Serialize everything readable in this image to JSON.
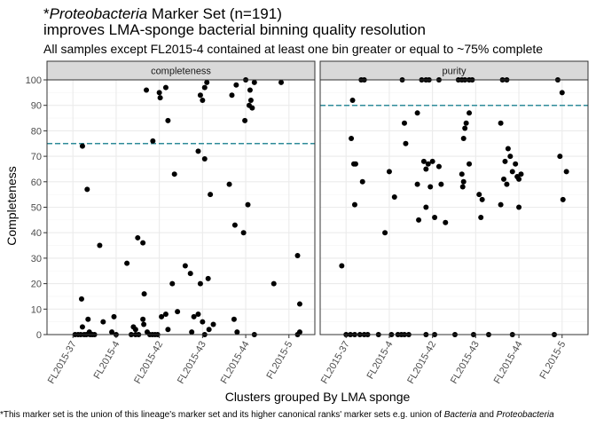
{
  "chart_data": {
    "type": "scatter",
    "title_prefix": "*",
    "title_italic": "Proteobacteria",
    "title_rest": " Marker Set (n=191)",
    "title_line2": "improves LMA-sponge bacterial binning quality resolution",
    "subtitle": "All samples except FL2015-4 contained at least one bin greater or equal to ~75% complete",
    "caption_parts": [
      {
        "text": "*This marker set is the union of this lineage's marker set and its higher canonical ranks' marker sets e.g. union of ",
        "italic": false
      },
      {
        "text": "Bacteria",
        "italic": true
      },
      {
        "text": " and ",
        "italic": false
      },
      {
        "text": "Proteobacteria",
        "italic": true
      }
    ],
    "xlabel": "Clusters grouped By LMA sponge",
    "ylabel": "Completeness",
    "categories": [
      "FL2015-37",
      "FL2015-4",
      "FL2015-42",
      "FL2015-43",
      "FL2015-44",
      "FL2015-5"
    ],
    "ylim": [
      0,
      100
    ],
    "yticks": [
      0,
      10,
      20,
      30,
      40,
      50,
      60,
      70,
      80,
      90,
      100
    ],
    "grid": true,
    "point_color": "#000000",
    "ref_line_color": "#2e8b99",
    "panel_bg": "#ffffff",
    "grid_color": "#ebebeb",
    "strip_bg": "#d9d9d9",
    "panels": [
      {
        "name": "completeness",
        "hline": 75,
        "points": [
          {
            "x": 1.22,
            "y": 74
          },
          {
            "x": 1.33,
            "y": 57
          },
          {
            "x": 1.62,
            "y": 35
          },
          {
            "x": 1.2,
            "y": 14
          },
          {
            "x": 1.35,
            "y": 6
          },
          {
            "x": 1.22,
            "y": 3
          },
          {
            "x": 1.38,
            "y": 1
          },
          {
            "x": 1.05,
            "y": 0
          },
          {
            "x": 1.12,
            "y": 0
          },
          {
            "x": 1.18,
            "y": 0
          },
          {
            "x": 1.26,
            "y": 0
          },
          {
            "x": 1.31,
            "y": 0
          },
          {
            "x": 1.4,
            "y": 0
          },
          {
            "x": 1.45,
            "y": 0
          },
          {
            "x": 1.5,
            "y": 0
          },
          {
            "x": 2.5,
            "y": 38
          },
          {
            "x": 2.25,
            "y": 28
          },
          {
            "x": 1.95,
            "y": 7
          },
          {
            "x": 1.7,
            "y": 5
          },
          {
            "x": 2.4,
            "y": 3
          },
          {
            "x": 2.45,
            "y": 2
          },
          {
            "x": 1.9,
            "y": 1
          },
          {
            "x": 2.0,
            "y": 0
          },
          {
            "x": 2.35,
            "y": 0
          },
          {
            "x": 2.45,
            "y": 0
          },
          {
            "x": 2.52,
            "y": 0
          },
          {
            "x": 2.7,
            "y": 96
          },
          {
            "x": 3.15,
            "y": 97
          },
          {
            "x": 3.0,
            "y": 95
          },
          {
            "x": 3.02,
            "y": 93
          },
          {
            "x": 3.2,
            "y": 84
          },
          {
            "x": 2.85,
            "y": 76
          },
          {
            "x": 3.35,
            "y": 63
          },
          {
            "x": 2.62,
            "y": 36
          },
          {
            "x": 3.3,
            "y": 20
          },
          {
            "x": 2.65,
            "y": 16
          },
          {
            "x": 3.42,
            "y": 9
          },
          {
            "x": 3.15,
            "y": 8
          },
          {
            "x": 2.62,
            "y": 6
          },
          {
            "x": 2.64,
            "y": 4
          },
          {
            "x": 3.05,
            "y": 7
          },
          {
            "x": 3.2,
            "y": 2
          },
          {
            "x": 2.72,
            "y": 1
          },
          {
            "x": 2.78,
            "y": 0
          },
          {
            "x": 2.84,
            "y": 0
          },
          {
            "x": 2.9,
            "y": 0
          },
          {
            "x": 2.96,
            "y": 0
          },
          {
            "x": 4.1,
            "y": 99
          },
          {
            "x": 4.05,
            "y": 97
          },
          {
            "x": 3.95,
            "y": 94
          },
          {
            "x": 4.0,
            "y": 92
          },
          {
            "x": 3.9,
            "y": 72
          },
          {
            "x": 4.05,
            "y": 69
          },
          {
            "x": 4.18,
            "y": 55
          },
          {
            "x": 3.6,
            "y": 27
          },
          {
            "x": 3.72,
            "y": 24
          },
          {
            "x": 4.13,
            "y": 22
          },
          {
            "x": 3.95,
            "y": 20
          },
          {
            "x": 3.9,
            "y": 8
          },
          {
            "x": 3.8,
            "y": 7
          },
          {
            "x": 4.0,
            "y": 5
          },
          {
            "x": 4.25,
            "y": 4
          },
          {
            "x": 4.15,
            "y": 2
          },
          {
            "x": 3.75,
            "y": 1
          },
          {
            "x": 4.05,
            "y": 0
          },
          {
            "x": 5.0,
            "y": 100
          },
          {
            "x": 5.2,
            "y": 99
          },
          {
            "x": 4.78,
            "y": 98
          },
          {
            "x": 5.1,
            "y": 96
          },
          {
            "x": 4.68,
            "y": 94
          },
          {
            "x": 5.12,
            "y": 92
          },
          {
            "x": 5.08,
            "y": 90
          },
          {
            "x": 5.15,
            "y": 89
          },
          {
            "x": 4.98,
            "y": 84
          },
          {
            "x": 4.62,
            "y": 59
          },
          {
            "x": 5.05,
            "y": 51
          },
          {
            "x": 4.75,
            "y": 43
          },
          {
            "x": 4.95,
            "y": 40
          },
          {
            "x": 4.73,
            "y": 6
          },
          {
            "x": 4.8,
            "y": 1
          },
          {
            "x": 5.2,
            "y": 0
          },
          {
            "x": 5.82,
            "y": 99
          },
          {
            "x": 6.2,
            "y": 31
          },
          {
            "x": 5.65,
            "y": 20
          },
          {
            "x": 6.25,
            "y": 12
          },
          {
            "x": 6.25,
            "y": 1
          },
          {
            "x": 6.2,
            "y": 0
          }
        ]
      },
      {
        "name": "purity",
        "hline": 90,
        "points": [
          {
            "x": 1.35,
            "y": 100
          },
          {
            "x": 1.42,
            "y": 100
          },
          {
            "x": 1.15,
            "y": 92
          },
          {
            "x": 1.12,
            "y": 77
          },
          {
            "x": 1.18,
            "y": 67
          },
          {
            "x": 1.22,
            "y": 67
          },
          {
            "x": 1.38,
            "y": 60
          },
          {
            "x": 1.2,
            "y": 51
          },
          {
            "x": 0.9,
            "y": 27
          },
          {
            "x": 1.0,
            "y": 0
          },
          {
            "x": 1.1,
            "y": 0
          },
          {
            "x": 1.2,
            "y": 0
          },
          {
            "x": 1.32,
            "y": 0
          },
          {
            "x": 1.42,
            "y": 0
          },
          {
            "x": 1.5,
            "y": 0
          },
          {
            "x": 2.3,
            "y": 100
          },
          {
            "x": 2.35,
            "y": 83
          },
          {
            "x": 2.38,
            "y": 75
          },
          {
            "x": 2.0,
            "y": 64
          },
          {
            "x": 2.12,
            "y": 54
          },
          {
            "x": 1.9,
            "y": 40
          },
          {
            "x": 1.75,
            "y": 0
          },
          {
            "x": 2.05,
            "y": 0
          },
          {
            "x": 2.2,
            "y": 0
          },
          {
            "x": 2.28,
            "y": 0
          },
          {
            "x": 2.35,
            "y": 0
          },
          {
            "x": 2.45,
            "y": 0
          },
          {
            "x": 2.75,
            "y": 100
          },
          {
            "x": 2.85,
            "y": 100
          },
          {
            "x": 2.92,
            "y": 100
          },
          {
            "x": 3.15,
            "y": 100
          },
          {
            "x": 2.65,
            "y": 87
          },
          {
            "x": 2.8,
            "y": 68
          },
          {
            "x": 2.9,
            "y": 67
          },
          {
            "x": 3.0,
            "y": 68
          },
          {
            "x": 2.85,
            "y": 65
          },
          {
            "x": 3.15,
            "y": 66
          },
          {
            "x": 2.95,
            "y": 58
          },
          {
            "x": 2.65,
            "y": 59
          },
          {
            "x": 3.2,
            "y": 59
          },
          {
            "x": 2.85,
            "y": 50
          },
          {
            "x": 2.68,
            "y": 45
          },
          {
            "x": 3.05,
            "y": 46
          },
          {
            "x": 3.3,
            "y": 44
          },
          {
            "x": 2.85,
            "y": 0
          },
          {
            "x": 3.05,
            "y": 0
          },
          {
            "x": 3.6,
            "y": 100
          },
          {
            "x": 3.68,
            "y": 100
          },
          {
            "x": 3.75,
            "y": 100
          },
          {
            "x": 3.85,
            "y": 100
          },
          {
            "x": 3.92,
            "y": 100
          },
          {
            "x": 3.85,
            "y": 87
          },
          {
            "x": 3.78,
            "y": 83
          },
          {
            "x": 3.75,
            "y": 81
          },
          {
            "x": 3.72,
            "y": 77
          },
          {
            "x": 3.85,
            "y": 67
          },
          {
            "x": 3.68,
            "y": 63
          },
          {
            "x": 3.72,
            "y": 60
          },
          {
            "x": 3.7,
            "y": 58
          },
          {
            "x": 4.08,
            "y": 55
          },
          {
            "x": 4.15,
            "y": 53
          },
          {
            "x": 4.12,
            "y": 46
          },
          {
            "x": 3.52,
            "y": 0
          },
          {
            "x": 3.95,
            "y": 0
          },
          {
            "x": 4.3,
            "y": 0
          },
          {
            "x": 4.62,
            "y": 100
          },
          {
            "x": 4.72,
            "y": 100
          },
          {
            "x": 4.58,
            "y": 83
          },
          {
            "x": 4.75,
            "y": 73
          },
          {
            "x": 4.8,
            "y": 70
          },
          {
            "x": 4.68,
            "y": 68
          },
          {
            "x": 4.92,
            "y": 67
          },
          {
            "x": 4.85,
            "y": 64
          },
          {
            "x": 5.05,
            "y": 63
          },
          {
            "x": 4.96,
            "y": 62
          },
          {
            "x": 5.0,
            "y": 61
          },
          {
            "x": 4.65,
            "y": 61
          },
          {
            "x": 4.72,
            "y": 59
          },
          {
            "x": 4.58,
            "y": 51
          },
          {
            "x": 5.0,
            "y": 50
          },
          {
            "x": 4.85,
            "y": 0
          },
          {
            "x": 5.9,
            "y": 100
          },
          {
            "x": 6.0,
            "y": 95
          },
          {
            "x": 5.95,
            "y": 70
          },
          {
            "x": 6.1,
            "y": 64
          },
          {
            "x": 6.02,
            "y": 53
          },
          {
            "x": 5.82,
            "y": 0
          }
        ]
      }
    ]
  }
}
